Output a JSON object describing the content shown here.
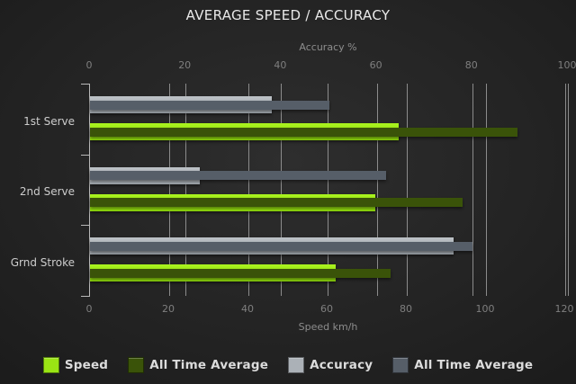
{
  "title": "AVERAGE SPEED / ACCURACY",
  "chart_data": {
    "type": "bar",
    "orientation": "horizontal",
    "title": "AVERAGE SPEED / ACCURACY",
    "categories": [
      "1st Serve",
      "2nd Serve",
      "Grnd Stroke"
    ],
    "axes": {
      "top": {
        "label": "Accuracy %",
        "range": [
          0,
          100
        ],
        "ticks": [
          0,
          20,
          40,
          60,
          80,
          100
        ]
      },
      "bottom": {
        "label": "Speed km/h",
        "range": [
          0,
          120
        ],
        "ticks": [
          0,
          20,
          40,
          60,
          80,
          100,
          120
        ]
      }
    },
    "grid": "vertical-lines-both-axes",
    "series": [
      {
        "name": "Speed",
        "axis": "bottom",
        "role": "thick",
        "color_top": "#aaf41f",
        "color_bottom": "#8cd60c",
        "color": "#9ae414",
        "values": [
          78,
          72,
          62
        ]
      },
      {
        "name": "All Time Average",
        "axis": "bottom",
        "role": "thin",
        "color": "#3a5309",
        "values": [
          108,
          94,
          76
        ]
      },
      {
        "name": "Accuracy",
        "axis": "top",
        "role": "thick",
        "color_top": "#bdc2c7",
        "color_bottom": "#9da3a9",
        "color": "#abb1b7",
        "values": [
          38,
          23,
          76
        ]
      },
      {
        "name": "All Time Average",
        "axis": "top",
        "role": "thin",
        "color": "#565e68",
        "values": [
          50,
          62,
          80
        ]
      }
    ],
    "legend_position": "bottom"
  },
  "legend": {
    "items": [
      {
        "label": "Speed",
        "color": "#9ae414"
      },
      {
        "label": "All Time Average",
        "color": "#3a5309"
      },
      {
        "label": "Accuracy",
        "color": "#abb1b7"
      },
      {
        "label": "All Time Average",
        "color": "#565e68"
      }
    ]
  },
  "colors": {
    "background_inner": "#2e2e2e",
    "background_outer": "#151515",
    "gridline": "#9e9e9e",
    "axis_line": "#b8b8b8",
    "title_text": "#e9e9e9",
    "axis_title_text": "#8d8d8d",
    "tick_text": "#7f7f7f",
    "category_text": "#cdcdcd",
    "legend_text": "#dcdcdc"
  }
}
